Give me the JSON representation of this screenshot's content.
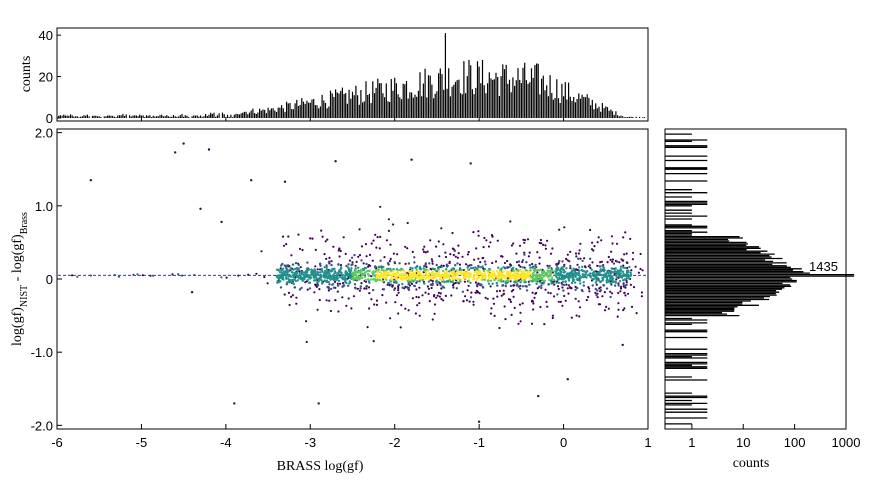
{
  "chart_data": [
    {
      "panel": "top-histogram",
      "type": "bar",
      "x_range": [
        -6,
        1
      ],
      "ylim": [
        0,
        42
      ],
      "y_ticks": [
        "0",
        "20",
        "40"
      ],
      "ylabel": "counts",
      "bin_width": 0.02,
      "peak": {
        "x": -1.4,
        "count": 41
      },
      "grid": false
    },
    {
      "panel": "main-scatter",
      "type": "scatter",
      "xlabel": "BRASS log(gf)",
      "ylabel_parts": {
        "main": "log(gf)",
        "sub_nist": "NIST",
        "minus": " - log(gf)",
        "sub_brass": "Brass"
      },
      "xlim": [
        -6,
        1
      ],
      "ylim": [
        -2.05,
        2.05
      ],
      "x_ticks": [
        "-6",
        "-5",
        "-4",
        "-3",
        "-2",
        "-1",
        "0",
        "1"
      ],
      "y_ticks": [
        "2.0",
        "1.0",
        "0",
        "-1.0",
        "-2.0"
      ],
      "y_tick_values": [
        2.0,
        1.0,
        0,
        -1.0,
        -2.0
      ],
      "reference_line_y": 0.05,
      "colormap": "viridis (density)",
      "colors": [
        "#440154",
        "#3b528b",
        "#21918c",
        "#5ec962",
        "#fde725"
      ],
      "outliers": [
        {
          "x": -5.6,
          "y": 1.35
        },
        {
          "x": -4.5,
          "y": 1.85
        },
        {
          "x": -4.6,
          "y": 1.73
        },
        {
          "x": -4.2,
          "y": 1.77
        },
        {
          "x": -4.3,
          "y": 0.96
        },
        {
          "x": -4.05,
          "y": 0.78
        },
        {
          "x": -3.3,
          "y": 1.33
        },
        {
          "x": -3.7,
          "y": 1.35
        },
        {
          "x": -2.7,
          "y": 1.61
        },
        {
          "x": -1.8,
          "y": 1.63
        },
        {
          "x": -1.1,
          "y": 1.58
        },
        {
          "x": -3.9,
          "y": -1.7
        },
        {
          "x": -2.9,
          "y": -1.7
        },
        {
          "x": -1.0,
          "y": -1.95
        },
        {
          "x": -0.3,
          "y": -1.6
        },
        {
          "x": 0.05,
          "y": -1.37
        },
        {
          "x": -4.4,
          "y": -0.18
        },
        {
          "x": 0.7,
          "y": -0.9
        }
      ]
    },
    {
      "panel": "right-histogram",
      "type": "bar",
      "orientation": "horizontal",
      "x_scale": "log",
      "xlim": [
        0.3,
        1000
      ],
      "x_ticks": [
        "1",
        "10",
        "100",
        "1000"
      ],
      "xlabel": "counts",
      "peak_label": "1435",
      "peak": {
        "y": 0.05,
        "count": 1435
      }
    }
  ]
}
